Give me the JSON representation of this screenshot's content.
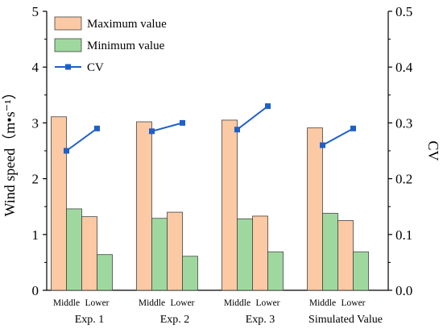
{
  "chart_data": {
    "type": "bar",
    "groups": [
      "Exp. 1",
      "Exp. 2",
      "Exp. 3",
      "Simulated Value"
    ],
    "positions": [
      "Middle",
      "Lower"
    ],
    "series": [
      {
        "name": "Maximum value",
        "kind": "bar",
        "color": "#FBC9A4",
        "values": [
          [
            3.11,
            1.32
          ],
          [
            3.02,
            1.4
          ],
          [
            3.05,
            1.33
          ],
          [
            2.91,
            1.25
          ]
        ]
      },
      {
        "name": "Minimum value",
        "kind": "bar",
        "color": "#9FD89F",
        "values": [
          [
            1.46,
            0.64
          ],
          [
            1.29,
            0.61
          ],
          [
            1.28,
            0.69
          ],
          [
            1.38,
            0.69
          ]
        ]
      },
      {
        "name": "CV",
        "kind": "line",
        "axis": "right",
        "color": "#1F5FC8",
        "values": [
          [
            0.25,
            0.29
          ],
          [
            0.285,
            0.3
          ],
          [
            0.288,
            0.33
          ],
          [
            0.26,
            0.29
          ]
        ]
      }
    ],
    "ylabel": "Wind speed（m•s⁻¹）",
    "ylabel2": "CV",
    "ylim": [
      0,
      5
    ],
    "ylim2": [
      0,
      0.5
    ],
    "yticks": [
      "0",
      "1",
      "2",
      "3",
      "4",
      "5"
    ],
    "yticks2": [
      "0.0",
      "0.1",
      "0.2",
      "0.3",
      "0.4",
      "0.5"
    ],
    "legend_position": "top-left",
    "grid": false
  }
}
